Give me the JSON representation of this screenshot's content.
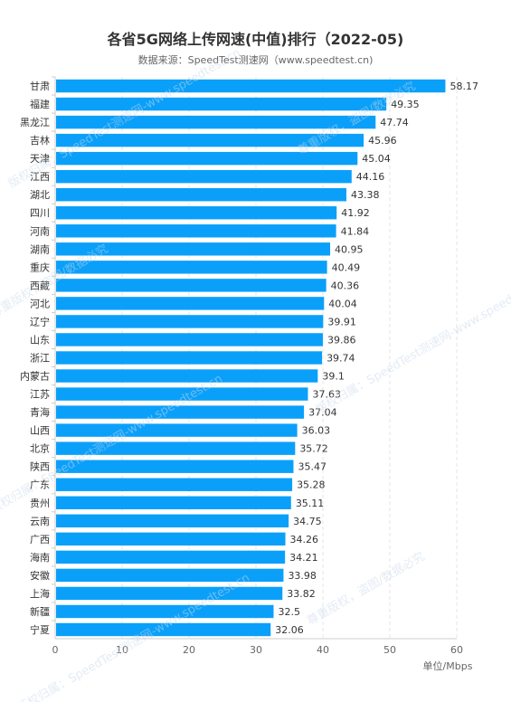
{
  "chart_data": {
    "type": "bar",
    "orientation": "horizontal",
    "title": "各省5G网络上传网速(中值)排行（2022-05)",
    "subtitle": "数据来源：SpeedTest测速网（www.speedtest.cn)",
    "unit_label": "单位/Mbps",
    "categories": [
      "甘肃",
      "福建",
      "黑龙江",
      "吉林",
      "天津",
      "江西",
      "湖北",
      "四川",
      "河南",
      "湖南",
      "重庆",
      "西藏",
      "河北",
      "辽宁",
      "山东",
      "浙江",
      "内蒙古",
      "江苏",
      "青海",
      "山西",
      "北京",
      "陕西",
      "广东",
      "贵州",
      "云南",
      "广西",
      "海南",
      "安徽",
      "上海",
      "新疆",
      "宁夏"
    ],
    "values": [
      58.17,
      49.35,
      47.74,
      45.96,
      45.04,
      44.16,
      43.38,
      41.92,
      41.84,
      40.95,
      40.49,
      40.36,
      40.04,
      39.91,
      39.86,
      39.74,
      39.1,
      37.63,
      37.04,
      36.03,
      35.72,
      35.47,
      35.28,
      35.11,
      34.75,
      34.26,
      34.21,
      33.98,
      33.82,
      32.5,
      32.06
    ],
    "value_labels": [
      "58.17",
      "49.35",
      "47.74",
      "45.96",
      "45.04",
      "44.16",
      "43.38",
      "41.92",
      "41.84",
      "40.95",
      "40.49",
      "40.36",
      "40.04",
      "39.91",
      "39.86",
      "39.74",
      "39.1",
      "37.63",
      "37.04",
      "36.03",
      "35.72",
      "35.47",
      "35.28",
      "35.11",
      "34.75",
      "34.26",
      "34.21",
      "33.98",
      "33.82",
      "32.5",
      "32.06"
    ],
    "xlim": [
      0,
      60
    ],
    "xticks": [
      "0",
      "10",
      "20",
      "30",
      "40",
      "50",
      "60"
    ],
    "grid": true,
    "bar_color": "#0aa0fa"
  },
  "watermark": {
    "line1": "版权归属：SpeedTest测速网-www.speedtest.cn",
    "line2": "尊重版权，盗图/数据必究"
  }
}
